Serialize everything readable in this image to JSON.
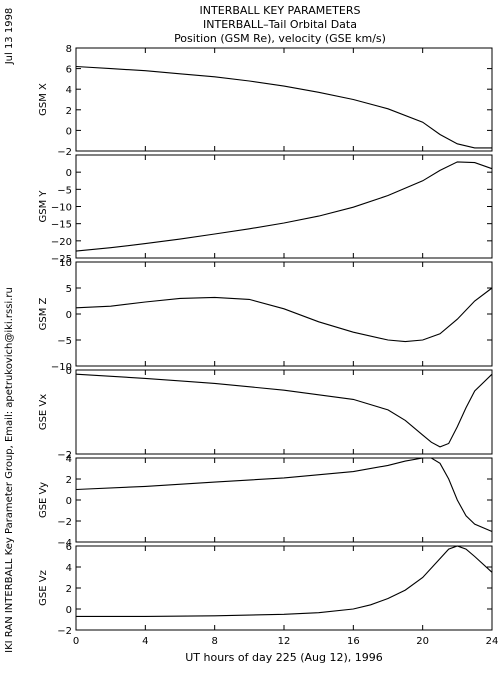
{
  "header": {
    "title_line1": "INTERBALL KEY PARAMETERS",
    "title_line2": "INTERBALL–Tail Orbital Data",
    "title_line3": "Position (GSM Re), velocity (GSE km/s)"
  },
  "side_date": "Jul 13 1998",
  "side_credit": "IKI RAN INTERBALL Key Parameter Group, Email: apetrukovich@iki.rssi.ru",
  "xlabel": "UT hours of day 225 (Aug 12), 1996",
  "xlim": [
    0,
    24
  ],
  "xticks": [
    0,
    4,
    8,
    12,
    16,
    20,
    24
  ],
  "xtick_labels": [
    "0",
    "4",
    "8",
    "12",
    "16",
    "20",
    "24"
  ],
  "chart_data": [
    {
      "type": "line",
      "ylabel": "GSM X",
      "ylim": [
        -2,
        8
      ],
      "yticks": [
        -2,
        0,
        2,
        4,
        6,
        8
      ],
      "ytick_labels": [
        "−2",
        "0",
        "2",
        "4",
        "6",
        "8"
      ],
      "x": [
        0,
        2,
        4,
        6,
        8,
        10,
        12,
        14,
        16,
        18,
        20,
        21,
        22,
        23,
        24
      ],
      "y": [
        6.2,
        6.0,
        5.8,
        5.5,
        5.2,
        4.8,
        4.3,
        3.7,
        3.0,
        2.1,
        0.8,
        -0.4,
        -1.3,
        -1.7,
        -1.7
      ]
    },
    {
      "type": "line",
      "ylabel": "GSM Y",
      "ylim": [
        -25,
        5
      ],
      "yticks": [
        -25,
        -20,
        -15,
        -10,
        -5,
        0
      ],
      "ytick_labels": [
        "−25",
        "−20",
        "−15",
        "−10",
        "−5",
        "0"
      ],
      "x": [
        0,
        2,
        4,
        6,
        8,
        10,
        12,
        14,
        16,
        18,
        20,
        21,
        22,
        23,
        24
      ],
      "y": [
        -23.0,
        -22.0,
        -20.8,
        -19.5,
        -18.0,
        -16.5,
        -14.8,
        -12.8,
        -10.2,
        -6.8,
        -2.5,
        0.5,
        3.0,
        2.8,
        1.0
      ]
    },
    {
      "type": "line",
      "ylabel": "GSM Z",
      "ylim": [
        -10,
        10
      ],
      "yticks": [
        -10,
        -5,
        0,
        5,
        10
      ],
      "ytick_labels": [
        "−10",
        "−5",
        "0",
        "5",
        "10"
      ],
      "x": [
        0,
        2,
        4,
        6,
        8,
        10,
        12,
        14,
        16,
        18,
        19,
        20,
        21,
        22,
        23,
        24
      ],
      "y": [
        1.2,
        1.5,
        2.3,
        3.0,
        3.2,
        2.8,
        1.0,
        -1.5,
        -3.5,
        -5.0,
        -5.3,
        -5.0,
        -3.8,
        -1.0,
        2.5,
        5.0
      ]
    },
    {
      "type": "line",
      "ylabel": "GSE Vx",
      "ylim": [
        -2,
        0
      ],
      "yticks": [
        -2,
        0
      ],
      "ytick_labels": [
        "−2",
        "0"
      ],
      "x": [
        0,
        4,
        8,
        12,
        16,
        18,
        19,
        20,
        20.5,
        21,
        21.5,
        22,
        22.5,
        23,
        24
      ],
      "y": [
        -0.1,
        -0.2,
        -0.32,
        -0.48,
        -0.7,
        -0.95,
        -1.2,
        -1.55,
        -1.72,
        -1.83,
        -1.75,
        -1.35,
        -0.9,
        -0.5,
        -0.1
      ]
    },
    {
      "type": "line",
      "ylabel": "GSE Vy",
      "ylim": [
        -4,
        4
      ],
      "yticks": [
        -4,
        -2,
        0,
        2,
        4
      ],
      "ytick_labels": [
        "−4",
        "−2",
        "0",
        "2",
        "4"
      ],
      "x": [
        0,
        4,
        8,
        12,
        16,
        18,
        19,
        20,
        20.5,
        21,
        21.5,
        22,
        22.5,
        23,
        24
      ],
      "y": [
        1.0,
        1.3,
        1.7,
        2.1,
        2.7,
        3.3,
        3.7,
        4.0,
        4.0,
        3.5,
        2.0,
        0.0,
        -1.5,
        -2.3,
        -3.0
      ]
    },
    {
      "type": "line",
      "ylabel": "GSE Vz",
      "ylim": [
        -2,
        6
      ],
      "yticks": [
        -2,
        0,
        2,
        4,
        6
      ],
      "ytick_labels": [
        "−2",
        "0",
        "2",
        "4",
        "6"
      ],
      "x": [
        0,
        4,
        8,
        12,
        14,
        16,
        17,
        18,
        19,
        20,
        21,
        21.5,
        22,
        22.5,
        23,
        24
      ],
      "y": [
        -0.7,
        -0.7,
        -0.65,
        -0.5,
        -0.35,
        0.0,
        0.4,
        1.0,
        1.8,
        3.0,
        4.8,
        5.7,
        6.0,
        5.7,
        5.0,
        3.5
      ]
    }
  ]
}
